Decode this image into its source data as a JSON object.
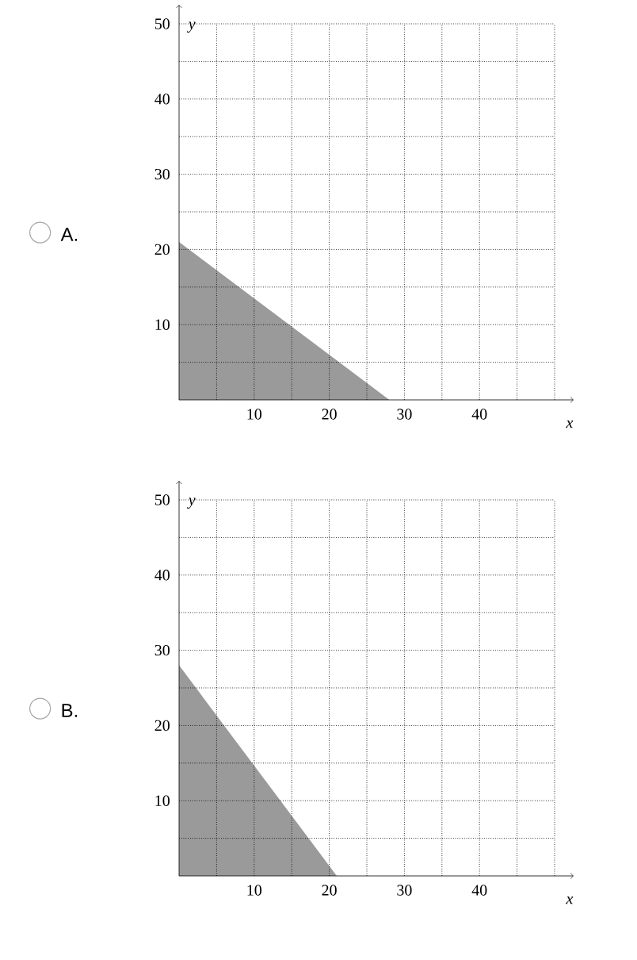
{
  "chart_data": [
    {
      "type": "area",
      "title": "A.",
      "xlabel": "x",
      "ylabel": "y",
      "x": [
        0,
        28
      ],
      "values": [
        21,
        0
      ],
      "color": "#9a9a9a",
      "xlim": [
        0,
        50
      ],
      "ylim": [
        0,
        50
      ],
      "xticks": [
        {
          "value": 5,
          "label": null
        },
        10,
        {
          "value": 15,
          "label": null
        },
        20,
        {
          "value": 25,
          "label": null
        },
        30,
        {
          "value": 35,
          "label": null
        },
        40,
        {
          "value": 45,
          "label": null
        },
        {
          "value": 50,
          "label": null
        }
      ],
      "yticks": [
        {
          "value": 5,
          "label": null
        },
        10,
        {
          "value": 15,
          "label": null
        },
        20,
        {
          "value": 25,
          "label": null
        },
        30,
        {
          "value": 35,
          "label": null
        },
        40,
        {
          "value": 45,
          "label": null
        },
        50
      ],
      "grid": true
    },
    {
      "type": "area",
      "title": "B.",
      "xlabel": "x",
      "ylabel": "y",
      "x": [
        0,
        21
      ],
      "values": [
        28,
        0
      ],
      "color": "#9a9a9a",
      "xlim": [
        0,
        50
      ],
      "ylim": [
        0,
        50
      ],
      "xticks": [
        {
          "value": 5,
          "label": null
        },
        10,
        {
          "value": 15,
          "label": null
        },
        20,
        {
          "value": 25,
          "label": null
        },
        30,
        {
          "value": 35,
          "label": null
        },
        40,
        {
          "value": 45,
          "label": null
        },
        {
          "value": 50,
          "label": null
        }
      ],
      "yticks": [
        {
          "value": 5,
          "label": null
        },
        10,
        {
          "value": 15,
          "label": null
        },
        20,
        {
          "value": 25,
          "label": null
        },
        30,
        {
          "value": 35,
          "label": null
        },
        40,
        {
          "value": 45,
          "label": null
        },
        50
      ],
      "grid": true
    }
  ]
}
